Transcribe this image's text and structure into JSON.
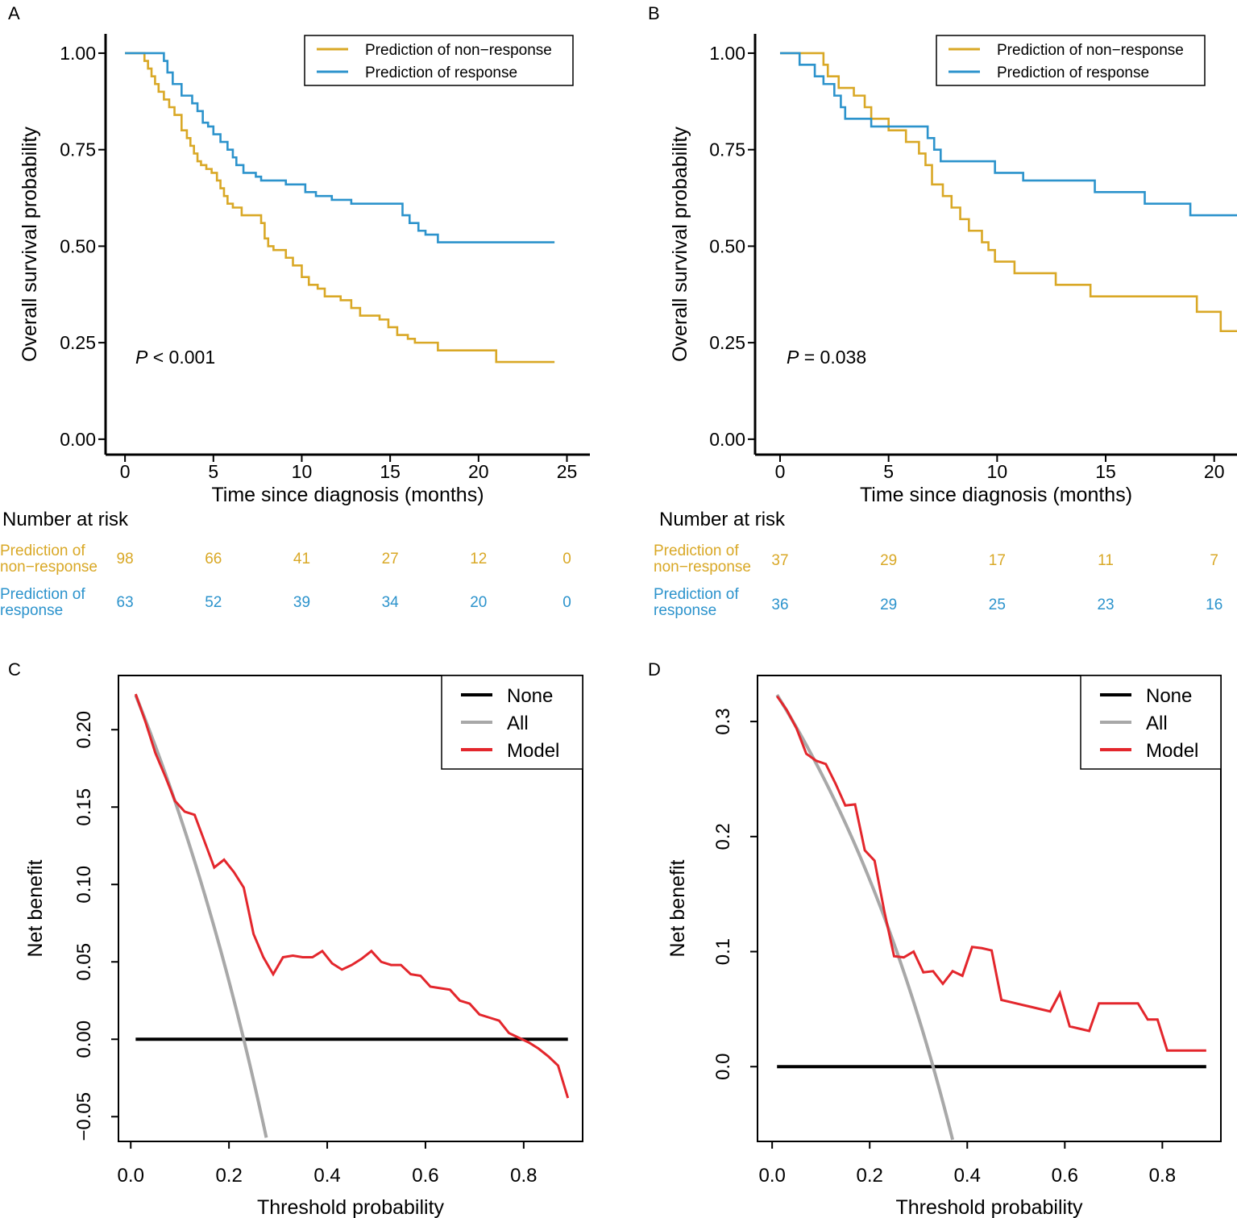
{
  "colors": {
    "non_response": "#D9A826",
    "response": "#2C93CC",
    "none": "#000000",
    "all": "#A8A8A8",
    "model": "#E3262C",
    "axis": "#000000"
  },
  "chart_data": [
    {
      "id": "A",
      "type": "line",
      "subtype": "kaplan-meier",
      "panel_label": "A",
      "xlabel": "Time since diagnosis (months)",
      "ylabel": "Overall survival probability",
      "xlim": [
        -1.1,
        26.3
      ],
      "ylim": [
        -0.04,
        1.05
      ],
      "xticks": [
        0,
        5,
        10,
        15,
        20,
        25
      ],
      "xtick_labels": [
        "0",
        "5",
        "10",
        "15",
        "20",
        "25"
      ],
      "yticks": [
        0,
        0.25,
        0.5,
        0.75,
        1
      ],
      "ytick_labels": [
        "0.00",
        "0.25",
        "0.50",
        "0.75",
        "1.00"
      ],
      "legend": [
        "Prediction of non−response",
        "Prediction of response"
      ],
      "legend_position": "top-right",
      "pvalue_prefix": "P",
      "pvalue_text": " < 0.001",
      "series": [
        {
          "name": "Prediction of non−response",
          "color_key": "non_response",
          "x": [
            0,
            1.1,
            1.3,
            1.5,
            1.7,
            1.9,
            2.2,
            2.5,
            2.8,
            3.2,
            3.5,
            3.7,
            3.9,
            4.1,
            4.3,
            4.6,
            4.9,
            5.2,
            5.4,
            5.6,
            5.8,
            6.1,
            6.6,
            7.7,
            7.9,
            8.1,
            8.4,
            9.1,
            9.5,
            10.0,
            10.4,
            10.9,
            11.3,
            11.7,
            12.2,
            12.8,
            13.3,
            14.4,
            14.9,
            15.4,
            16.0,
            16.4,
            17.7,
            21.0,
            24.3
          ],
          "y": [
            1.0,
            0.98,
            0.96,
            0.94,
            0.92,
            0.9,
            0.88,
            0.86,
            0.84,
            0.8,
            0.78,
            0.76,
            0.74,
            0.72,
            0.71,
            0.7,
            0.69,
            0.67,
            0.65,
            0.63,
            0.61,
            0.6,
            0.58,
            0.56,
            0.52,
            0.5,
            0.49,
            0.47,
            0.45,
            0.42,
            0.4,
            0.39,
            0.37,
            0.37,
            0.36,
            0.34,
            0.32,
            0.31,
            0.29,
            0.27,
            0.26,
            0.25,
            0.23,
            0.2,
            0.2
          ]
        },
        {
          "name": "Prediction of response",
          "color_key": "response",
          "x": [
            0,
            2.2,
            2.4,
            2.7,
            3.2,
            3.8,
            4.1,
            4.4,
            4.7,
            5.0,
            5.4,
            5.8,
            6.1,
            6.3,
            6.7,
            7.4,
            7.7,
            9.1,
            10.2,
            10.8,
            11.7,
            12.8,
            15.7,
            16.1,
            16.6,
            17.0,
            17.7,
            24.3
          ],
          "y": [
            1.0,
            0.98,
            0.95,
            0.92,
            0.89,
            0.87,
            0.85,
            0.82,
            0.81,
            0.79,
            0.77,
            0.75,
            0.73,
            0.71,
            0.69,
            0.68,
            0.67,
            0.66,
            0.64,
            0.63,
            0.62,
            0.61,
            0.58,
            0.56,
            0.54,
            0.53,
            0.51,
            0.51
          ]
        }
      ],
      "risk_table": {
        "title": "Number at risk",
        "rows": [
          {
            "label_lines": [
              "Prediction of",
              "non−response"
            ],
            "color_key": "non_response",
            "values": [
              "98",
              "66",
              "41",
              "27",
              "12",
              "0"
            ]
          },
          {
            "label_lines": [
              "Prediction of",
              "response"
            ],
            "color_key": "response",
            "values": [
              "63",
              "52",
              "39",
              "34",
              "20",
              "0"
            ]
          }
        ]
      }
    },
    {
      "id": "B",
      "type": "line",
      "subtype": "kaplan-meier",
      "panel_label": "B",
      "xlabel": "Time since diagnosis (months)",
      "ylabel": "Overall survival probability",
      "xlim": [
        -1.15,
        21.05
      ],
      "ylim": [
        -0.04,
        1.05
      ],
      "xticks": [
        0,
        5,
        10,
        15,
        20
      ],
      "xtick_labels": [
        "0",
        "5",
        "10",
        "15",
        "20"
      ],
      "yticks": [
        0,
        0.25,
        0.5,
        0.75,
        1
      ],
      "ytick_labels": [
        "0.00",
        "0.25",
        "0.50",
        "0.75",
        "1.00"
      ],
      "legend": [
        "Prediction of non−response",
        "Prediction of response"
      ],
      "legend_position": "top-right",
      "pvalue_prefix": "P",
      "pvalue_text": " = 0.038",
      "series": [
        {
          "name": "Prediction of non−response",
          "color_key": "non_response",
          "x": [
            0,
            2.0,
            2.2,
            2.7,
            3.4,
            3.9,
            4.2,
            4.5,
            5.0,
            5.8,
            6.4,
            6.7,
            7.0,
            7.5,
            7.9,
            8.3,
            8.7,
            9.3,
            9.6,
            9.9,
            10.8,
            12.7,
            14.3,
            17.7,
            19.2,
            20.3,
            21.05
          ],
          "y": [
            1.0,
            0.97,
            0.94,
            0.91,
            0.89,
            0.86,
            0.83,
            0.83,
            0.8,
            0.77,
            0.74,
            0.71,
            0.66,
            0.63,
            0.6,
            0.57,
            0.54,
            0.51,
            0.49,
            0.46,
            0.43,
            0.4,
            0.37,
            0.37,
            0.33,
            0.28,
            0.28
          ]
        },
        {
          "name": "Prediction of response",
          "color_key": "response",
          "x": [
            0,
            0.9,
            1.6,
            2.0,
            2.5,
            2.8,
            3.0,
            3.4,
            4.2,
            6.6,
            6.8,
            7.1,
            7.4,
            8.6,
            9.9,
            11.2,
            13.1,
            14.5,
            16.8,
            18.9,
            21.05
          ],
          "y": [
            1.0,
            0.97,
            0.94,
            0.92,
            0.89,
            0.86,
            0.83,
            0.83,
            0.81,
            0.81,
            0.78,
            0.75,
            0.72,
            0.72,
            0.69,
            0.67,
            0.67,
            0.64,
            0.61,
            0.58,
            0.58
          ]
        }
      ],
      "risk_table": {
        "title": "Number at risk",
        "rows": [
          {
            "label_lines": [
              "Prediction of",
              "non−response"
            ],
            "color_key": "non_response",
            "values": [
              "37",
              "29",
              "17",
              "11",
              "7"
            ]
          },
          {
            "label_lines": [
              "Prediction of",
              "response"
            ],
            "color_key": "response",
            "values": [
              "36",
              "29",
              "25",
              "23",
              "16"
            ]
          }
        ]
      }
    },
    {
      "id": "C",
      "type": "line",
      "subtype": "decision-curve",
      "panel_label": "C",
      "xlabel": "Threshold probability",
      "ylabel": "Net benefit",
      "xlim": [
        -0.025,
        0.92
      ],
      "ylim": [
        -0.066,
        0.235
      ],
      "xticks": [
        0,
        0.2,
        0.4,
        0.6,
        0.8
      ],
      "xtick_labels": [
        "0.0",
        "0.2",
        "0.4",
        "0.6",
        "0.8"
      ],
      "yticks": [
        -0.05,
        0,
        0.05,
        0.1,
        0.15,
        0.2
      ],
      "ytick_labels": [
        "−0.05",
        "0.00",
        "0.05",
        "0.10",
        "0.15",
        "0.20"
      ],
      "legend": [
        "None",
        "All",
        "Model"
      ],
      "legend_position": "top-right",
      "series": [
        {
          "name": "None",
          "color_key": "none",
          "x": [
            0.01,
            0.89
          ],
          "y": [
            0,
            0
          ]
        },
        {
          "name": "All",
          "color_key": "all",
          "prevalence": 0.23,
          "x_range": [
            0.01,
            0.276
          ]
        },
        {
          "name": "Model",
          "color_key": "model",
          "x": [
            0.01,
            0.03,
            0.05,
            0.07,
            0.09,
            0.11,
            0.13,
            0.15,
            0.17,
            0.19,
            0.21,
            0.23,
            0.25,
            0.27,
            0.29,
            0.31,
            0.33,
            0.35,
            0.37,
            0.39,
            0.41,
            0.43,
            0.45,
            0.47,
            0.49,
            0.51,
            0.53,
            0.55,
            0.57,
            0.59,
            0.61,
            0.63,
            0.65,
            0.67,
            0.69,
            0.71,
            0.73,
            0.75,
            0.77,
            0.79,
            0.81,
            0.83,
            0.85,
            0.87,
            0.89
          ],
          "y": [
            0.223,
            0.205,
            0.185,
            0.17,
            0.154,
            0.147,
            0.145,
            0.128,
            0.111,
            0.116,
            0.108,
            0.098,
            0.068,
            0.053,
            0.042,
            0.053,
            0.054,
            0.053,
            0.053,
            0.057,
            0.049,
            0.045,
            0.048,
            0.052,
            0.057,
            0.05,
            0.048,
            0.048,
            0.042,
            0.041,
            0.034,
            0.033,
            0.032,
            0.025,
            0.023,
            0.016,
            0.014,
            0.012,
            0.004,
            0.001,
            -0.002,
            -0.006,
            -0.011,
            -0.017,
            -0.038
          ]
        }
      ]
    },
    {
      "id": "D",
      "type": "line",
      "subtype": "decision-curve",
      "panel_label": "D",
      "xlabel": "Threshold probability",
      "ylabel": "Net benefit",
      "xlim": [
        -0.03,
        0.92
      ],
      "ylim": [
        -0.065,
        0.34
      ],
      "xticks": [
        0,
        0.2,
        0.4,
        0.6,
        0.8
      ],
      "xtick_labels": [
        "0.0",
        "0.2",
        "0.4",
        "0.6",
        "0.8"
      ],
      "yticks": [
        0,
        0.1,
        0.2,
        0.3
      ],
      "ytick_labels": [
        "0.0",
        "0.1",
        "0.2",
        "0.3"
      ],
      "legend": [
        "None",
        "All",
        "Model"
      ],
      "legend_position": "top-right",
      "series": [
        {
          "name": "None",
          "color_key": "none",
          "x": [
            0.01,
            0.89
          ],
          "y": [
            0,
            0
          ]
        },
        {
          "name": "All",
          "color_key": "all",
          "prevalence": 0.33,
          "x_range": [
            0.01,
            0.37
          ]
        },
        {
          "name": "Model",
          "color_key": "model",
          "x": [
            0.01,
            0.03,
            0.05,
            0.07,
            0.09,
            0.11,
            0.13,
            0.15,
            0.17,
            0.19,
            0.21,
            0.23,
            0.25,
            0.27,
            0.29,
            0.31,
            0.33,
            0.35,
            0.37,
            0.39,
            0.41,
            0.43,
            0.45,
            0.47,
            0.49,
            0.51,
            0.53,
            0.55,
            0.57,
            0.59,
            0.61,
            0.63,
            0.65,
            0.67,
            0.69,
            0.71,
            0.73,
            0.75,
            0.77,
            0.79,
            0.81,
            0.83,
            0.85,
            0.87,
            0.89
          ],
          "y": [
            0.322,
            0.31,
            0.294,
            0.272,
            0.266,
            0.263,
            0.246,
            0.227,
            0.228,
            0.188,
            0.179,
            0.135,
            0.096,
            0.095,
            0.1,
            0.082,
            0.083,
            0.072,
            0.083,
            0.079,
            0.104,
            0.103,
            0.101,
            0.058,
            0.056,
            0.054,
            0.052,
            0.05,
            0.048,
            0.064,
            0.035,
            0.033,
            0.031,
            0.055,
            0.055,
            0.055,
            0.055,
            0.055,
            0.041,
            0.041,
            0.014,
            0.014,
            0.014,
            0.014,
            0.014
          ]
        }
      ]
    }
  ]
}
